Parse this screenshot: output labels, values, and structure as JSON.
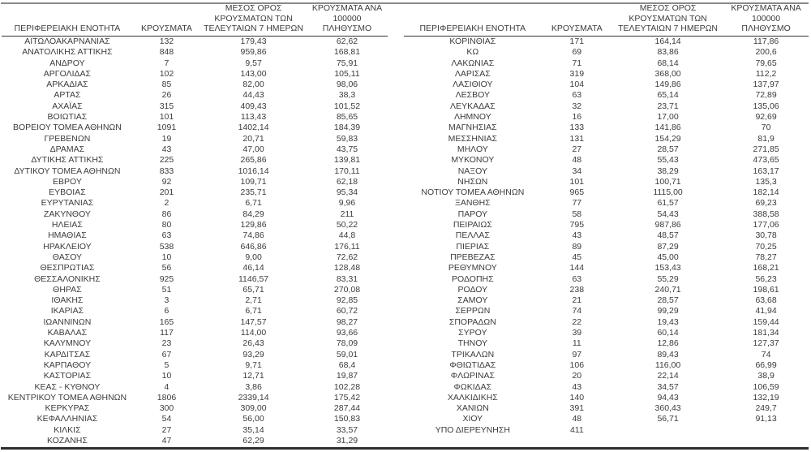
{
  "table": {
    "headers": {
      "region": "ΠΕΡΙΦΕΡΕΙΑΚΗ ΕΝΟΤΗΤΑ",
      "cases": "ΚΡΟΥΣΜΑΤΑ",
      "avg7": "ΜΕΣΟΣ ΟΡΟΣ\nΚΡΟΥΣΜΑΤΩΝ ΤΩΝ\nΤΕΛΕΥΤΑΙΩΝ 7 ΗΜΕΡΩΝ",
      "per100k": "ΚΡΟΥΣΜΑΤΑ ΑΝΑ 100000\nΠΛΗΘΥΣΜΟ"
    },
    "left_rows": [
      [
        "ΑΙΤΩΛΟΑΚΑΡΝΑΝΙΑΣ",
        "132",
        "179,43",
        "62,62"
      ],
      [
        "ΑΝΑΤΟΛΙΚΗΣ ΑΤΤΙΚΗΣ",
        "848",
        "959,86",
        "168,81"
      ],
      [
        "ΑΝΔΡΟΥ",
        "7",
        "9,57",
        "75,91"
      ],
      [
        "ΑΡΓΟΛΙΔΑΣ",
        "102",
        "143,00",
        "105,11"
      ],
      [
        "ΑΡΚΑΔΙΑΣ",
        "85",
        "82,00",
        "98,06"
      ],
      [
        "ΑΡΤΑΣ",
        "26",
        "44,43",
        "38,3"
      ],
      [
        "ΑΧΑΪΑΣ",
        "315",
        "409,43",
        "101,52"
      ],
      [
        "ΒΟΙΩΤΙΑΣ",
        "101",
        "113,43",
        "85,65"
      ],
      [
        "ΒΟΡΕΙΟΥ ΤΟΜΕΑ ΑΘΗΝΩΝ",
        "1091",
        "1402,14",
        "184,39"
      ],
      [
        "ΓΡΕΒΕΝΩΝ",
        "19",
        "20,71",
        "59,83"
      ],
      [
        "ΔΡΑΜΑΣ",
        "43",
        "47,00",
        "43,75"
      ],
      [
        "ΔΥΤΙΚΗΣ ΑΤΤΙΚΗΣ",
        "225",
        "265,86",
        "139,81"
      ],
      [
        "ΔΥΤΙΚΟΥ ΤΟΜΕΑ ΑΘΗΝΩΝ",
        "833",
        "1016,14",
        "170,11"
      ],
      [
        "ΕΒΡΟΥ",
        "92",
        "109,71",
        "62,18"
      ],
      [
        "ΕΥΒΟΙΑΣ",
        "201",
        "235,71",
        "95,34"
      ],
      [
        "ΕΥΡΥΤΑΝΙΑΣ",
        "2",
        "6,71",
        "9,96"
      ],
      [
        "ΖΑΚΥΝΘΟΥ",
        "86",
        "84,29",
        "211"
      ],
      [
        "ΗΛΕΙΑΣ",
        "80",
        "129,86",
        "50,22"
      ],
      [
        "ΗΜΑΘΙΑΣ",
        "63",
        "74,86",
        "44,8"
      ],
      [
        "ΗΡΑΚΛΕΙΟΥ",
        "538",
        "646,86",
        "176,11"
      ],
      [
        "ΘΑΣΟΥ",
        "10",
        "9,00",
        "72,62"
      ],
      [
        "ΘΕΣΠΡΩΤΙΑΣ",
        "56",
        "46,14",
        "128,48"
      ],
      [
        "ΘΕΣΣΑΛΟΝΙΚΗΣ",
        "925",
        "1146,57",
        "83,31"
      ],
      [
        "ΘΗΡΑΣ",
        "51",
        "65,71",
        "270,08"
      ],
      [
        "ΙΘΑΚΗΣ",
        "3",
        "2,71",
        "92,85"
      ],
      [
        "ΙΚΑΡΙΑΣ",
        "6",
        "6,71",
        "60,72"
      ],
      [
        "ΙΩΑΝΝΙΝΩΝ",
        "165",
        "147,57",
        "98,27"
      ],
      [
        "ΚΑΒΑΛΑΣ",
        "117",
        "114,00",
        "93,66"
      ],
      [
        "ΚΑΛΥΜΝΟΥ",
        "23",
        "26,43",
        "78,09"
      ],
      [
        "ΚΑΡΔΙΤΣΑΣ",
        "67",
        "93,29",
        "59,01"
      ],
      [
        "ΚΑΡΠΑΘΟΥ",
        "5",
        "9,71",
        "68,4"
      ],
      [
        "ΚΑΣΤΟΡΙΑΣ",
        "10",
        "12,71",
        "19,87"
      ],
      [
        "ΚΕΑΣ - ΚΥΘΝΟΥ",
        "4",
        "3,86",
        "102,28"
      ],
      [
        "ΚΕΝΤΡΙΚΟΥ ΤΟΜΕΑ ΑΘΗΝΩΝ",
        "1806",
        "2339,14",
        "175,42"
      ],
      [
        "ΚΕΡΚΥΡΑΣ",
        "300",
        "309,00",
        "287,44"
      ],
      [
        "ΚΕΦΑΛΛΗΝΙΑΣ",
        "54",
        "56,00",
        "150,83"
      ],
      [
        "ΚΙΛΚΙΣ",
        "27",
        "35,14",
        "33,57"
      ],
      [
        "ΚΟΖΑΝΗΣ",
        "47",
        "62,29",
        "31,29"
      ]
    ],
    "right_rows": [
      [
        "ΚΟΡΙΝΘΙΑΣ",
        "171",
        "164,14",
        "117,86"
      ],
      [
        "ΚΩ",
        "69",
        "83,86",
        "200,6"
      ],
      [
        "ΛΑΚΩΝΙΑΣ",
        "71",
        "68,14",
        "79,65"
      ],
      [
        "ΛΑΡΙΣΑΣ",
        "319",
        "368,00",
        "112,2"
      ],
      [
        "ΛΑΣΙΘΙΟΥ",
        "104",
        "149,86",
        "137,97"
      ],
      [
        "ΛΕΣΒΟΥ",
        "63",
        "65,14",
        "72,89"
      ],
      [
        "ΛΕΥΚΑΔΑΣ",
        "32",
        "23,71",
        "135,06"
      ],
      [
        "ΛΗΜΝΟΥ",
        "16",
        "17,00",
        "92,69"
      ],
      [
        "ΜΑΓΝΗΣΙΑΣ",
        "133",
        "141,86",
        "70"
      ],
      [
        "ΜΕΣΣΗΝΙΑΣ",
        "131",
        "154,29",
        "81,9"
      ],
      [
        "ΜΗΛΟΥ",
        "27",
        "28,57",
        "271,85"
      ],
      [
        "ΜΥΚΟΝΟΥ",
        "48",
        "55,43",
        "473,65"
      ],
      [
        "ΝΑΞΟΥ",
        "34",
        "38,29",
        "163,17"
      ],
      [
        "ΝΗΣΩΝ",
        "101",
        "100,71",
        "135,3"
      ],
      [
        "ΝΟΤΙΟΥ ΤΟΜΕΑ ΑΘΗΝΩΝ",
        "965",
        "1115,00",
        "182,14"
      ],
      [
        "ΞΑΝΘΗΣ",
        "77",
        "61,57",
        "69,23"
      ],
      [
        "ΠΑΡΟΥ",
        "58",
        "54,43",
        "388,58"
      ],
      [
        "ΠΕΙΡΑΙΩΣ",
        "795",
        "987,86",
        "177,06"
      ],
      [
        "ΠΕΛΛΑΣ",
        "43",
        "48,57",
        "30,78"
      ],
      [
        "ΠΙΕΡΙΑΣ",
        "89",
        "87,29",
        "70,25"
      ],
      [
        "ΠΡΕΒΕΖΑΣ",
        "45",
        "45,00",
        "78,27"
      ],
      [
        "ΡΕΘΥΜΝΟΥ",
        "144",
        "153,43",
        "168,21"
      ],
      [
        "ΡΟΔΟΠΗΣ",
        "63",
        "55,29",
        "56,23"
      ],
      [
        "ΡΟΔΟΥ",
        "238",
        "240,71",
        "198,61"
      ],
      [
        "ΣΑΜΟΥ",
        "21",
        "28,57",
        "63,68"
      ],
      [
        "ΣΕΡΡΩΝ",
        "74",
        "99,29",
        "41,94"
      ],
      [
        "ΣΠΟΡΑΔΩΝ",
        "22",
        "19,43",
        "159,44"
      ],
      [
        "ΣΥΡΟΥ",
        "39",
        "60,14",
        "181,34"
      ],
      [
        "ΤΗΝΟΥ",
        "11",
        "12,86",
        "127,37"
      ],
      [
        "ΤΡΙΚΑΛΩΝ",
        "97",
        "89,43",
        "74"
      ],
      [
        "ΦΘΙΩΤΙΔΑΣ",
        "106",
        "116,00",
        "66,99"
      ],
      [
        "ΦΛΩΡΙΝΑΣ",
        "20",
        "22,14",
        "38,9"
      ],
      [
        "ΦΩΚΙΔΑΣ",
        "43",
        "34,57",
        "106,59"
      ],
      [
        "ΧΑΛΚΙΔΙΚΗΣ",
        "140",
        "94,43",
        "132,19"
      ],
      [
        "ΧΑΝΙΩΝ",
        "391",
        "360,43",
        "249,7"
      ],
      [
        "ΧΙΟΥ",
        "48",
        "56,71",
        "91,13"
      ],
      [
        "ΥΠΟ ΔΙΕΡΕΥΝΗΣΗ",
        "411",
        "",
        ""
      ]
    ]
  },
  "colors": {
    "text": "#3c3c3c",
    "top_border": "#8a8a8a",
    "header_underline": "#333333",
    "bottom_border": "#2e2e2e"
  }
}
